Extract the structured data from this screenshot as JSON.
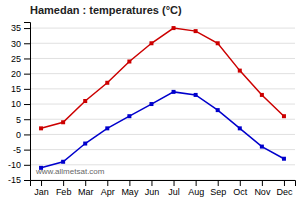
{
  "chart_data": {
    "type": "line",
    "title": "Hamedan : temperatures (°C)",
    "categories": [
      "Jan",
      "Feb",
      "Mar",
      "Apr",
      "May",
      "Jun",
      "Jul",
      "Aug",
      "Sep",
      "Oct",
      "Nov",
      "Dec"
    ],
    "series": [
      {
        "color": "#cc0000",
        "marker": "square",
        "values": [
          2,
          4,
          11,
          17,
          24,
          30,
          35,
          34,
          30,
          21,
          13,
          6
        ]
      },
      {
        "color": "#0000cc",
        "marker": "square",
        "values": [
          -11,
          -9,
          -3,
          2,
          6,
          10,
          14,
          13,
          8,
          2,
          -4,
          -8
        ]
      }
    ],
    "ylim": [
      -15,
      37
    ],
    "yticks": [
      -15,
      -10,
      -5,
      0,
      5,
      10,
      15,
      20,
      25,
      30,
      35
    ],
    "grid": true,
    "annotations": [
      "www.allmetsat.com"
    ]
  }
}
